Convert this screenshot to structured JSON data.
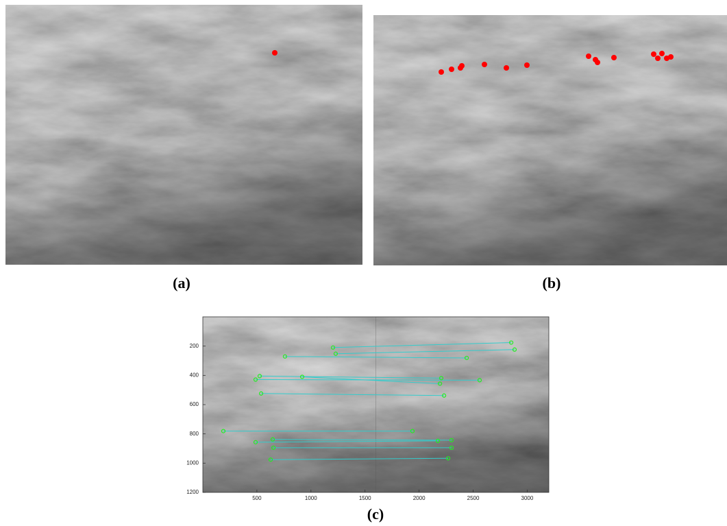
{
  "panel_labels": [
    "(a)",
    "(b)",
    "(c)"
  ],
  "chart_data": {
    "type": "match",
    "xlim": [
      0,
      3200
    ],
    "ylim": [
      1200,
      0
    ],
    "xticks": [
      500,
      1000,
      1500,
      2000,
      2500,
      3000
    ],
    "yticks": [
      200,
      400,
      600,
      800,
      1000,
      1200
    ],
    "split": 1600,
    "point_color": "#22ee22",
    "line_color": "#33cccc",
    "matches": [
      {
        "x1": 1204,
        "y1": 210,
        "x2": 2852,
        "y2": 176
      },
      {
        "x1": 1229,
        "y1": 252,
        "x2": 2883,
        "y2": 224
      },
      {
        "x1": 760,
        "y1": 271,
        "x2": 2440,
        "y2": 281
      },
      {
        "x1": 526,
        "y1": 405,
        "x2": 2205,
        "y2": 419
      },
      {
        "x1": 488,
        "y1": 429,
        "x2": 2560,
        "y2": 433
      },
      {
        "x1": 919,
        "y1": 410,
        "x2": 2193,
        "y2": 457
      },
      {
        "x1": 539,
        "y1": 524,
        "x2": 2231,
        "y2": 538
      },
      {
        "x1": 190,
        "y1": 781,
        "x2": 1939,
        "y2": 781
      },
      {
        "x1": 646,
        "y1": 838,
        "x2": 2300,
        "y2": 843
      },
      {
        "x1": 488,
        "y1": 857,
        "x2": 2174,
        "y2": 848
      },
      {
        "x1": 653,
        "y1": 895,
        "x2": 2300,
        "y2": 895
      },
      {
        "x1": 627,
        "y1": 976,
        "x2": 2269,
        "y2": 967
      }
    ]
  }
}
